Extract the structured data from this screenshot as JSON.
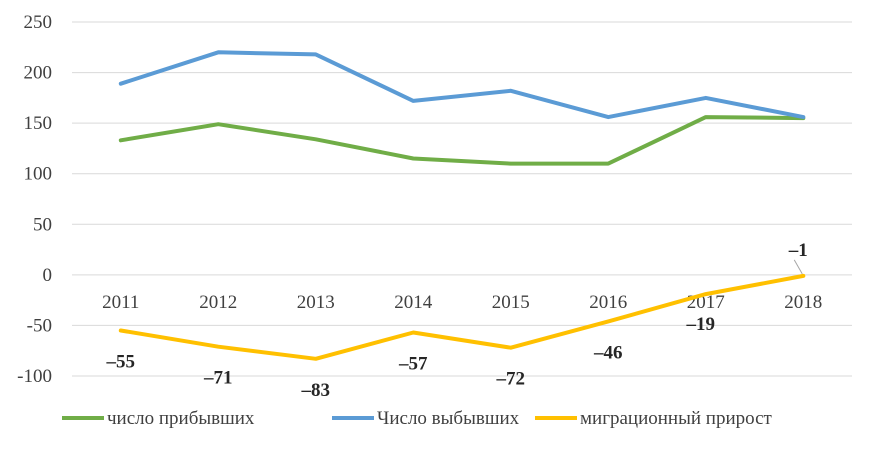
{
  "chart_data": {
    "type": "line",
    "categories": [
      "2011",
      "2012",
      "2013",
      "2014",
      "2015",
      "2016",
      "2017",
      "2018"
    ],
    "ylim": [
      -100,
      250
    ],
    "yticks": [
      -100,
      -50,
      0,
      50,
      100,
      150,
      200,
      250
    ],
    "ytick_labels": [
      "-100",
      "-50",
      "0",
      "50",
      "100",
      "150",
      "200",
      "250"
    ],
    "grid": true,
    "legend": "bottom",
    "series": [
      {
        "name": "число прибывших",
        "color": "#70ad47",
        "values": [
          133,
          149,
          134,
          115,
          110,
          110,
          156,
          155
        ]
      },
      {
        "name": "Число выбывших",
        "color": "#5b9bd5",
        "values": [
          189,
          220,
          218,
          172,
          182,
          156,
          175,
          156
        ]
      },
      {
        "name": "миграционный прирост",
        "color": "#ffc000",
        "values": [
          -55,
          -71,
          -83,
          -57,
          -72,
          -46,
          -19,
          -1
        ],
        "data_labels": [
          "–55",
          "–71",
          "–83",
          "–57",
          "–72",
          "–46",
          "–19",
          "–1"
        ]
      }
    ]
  }
}
